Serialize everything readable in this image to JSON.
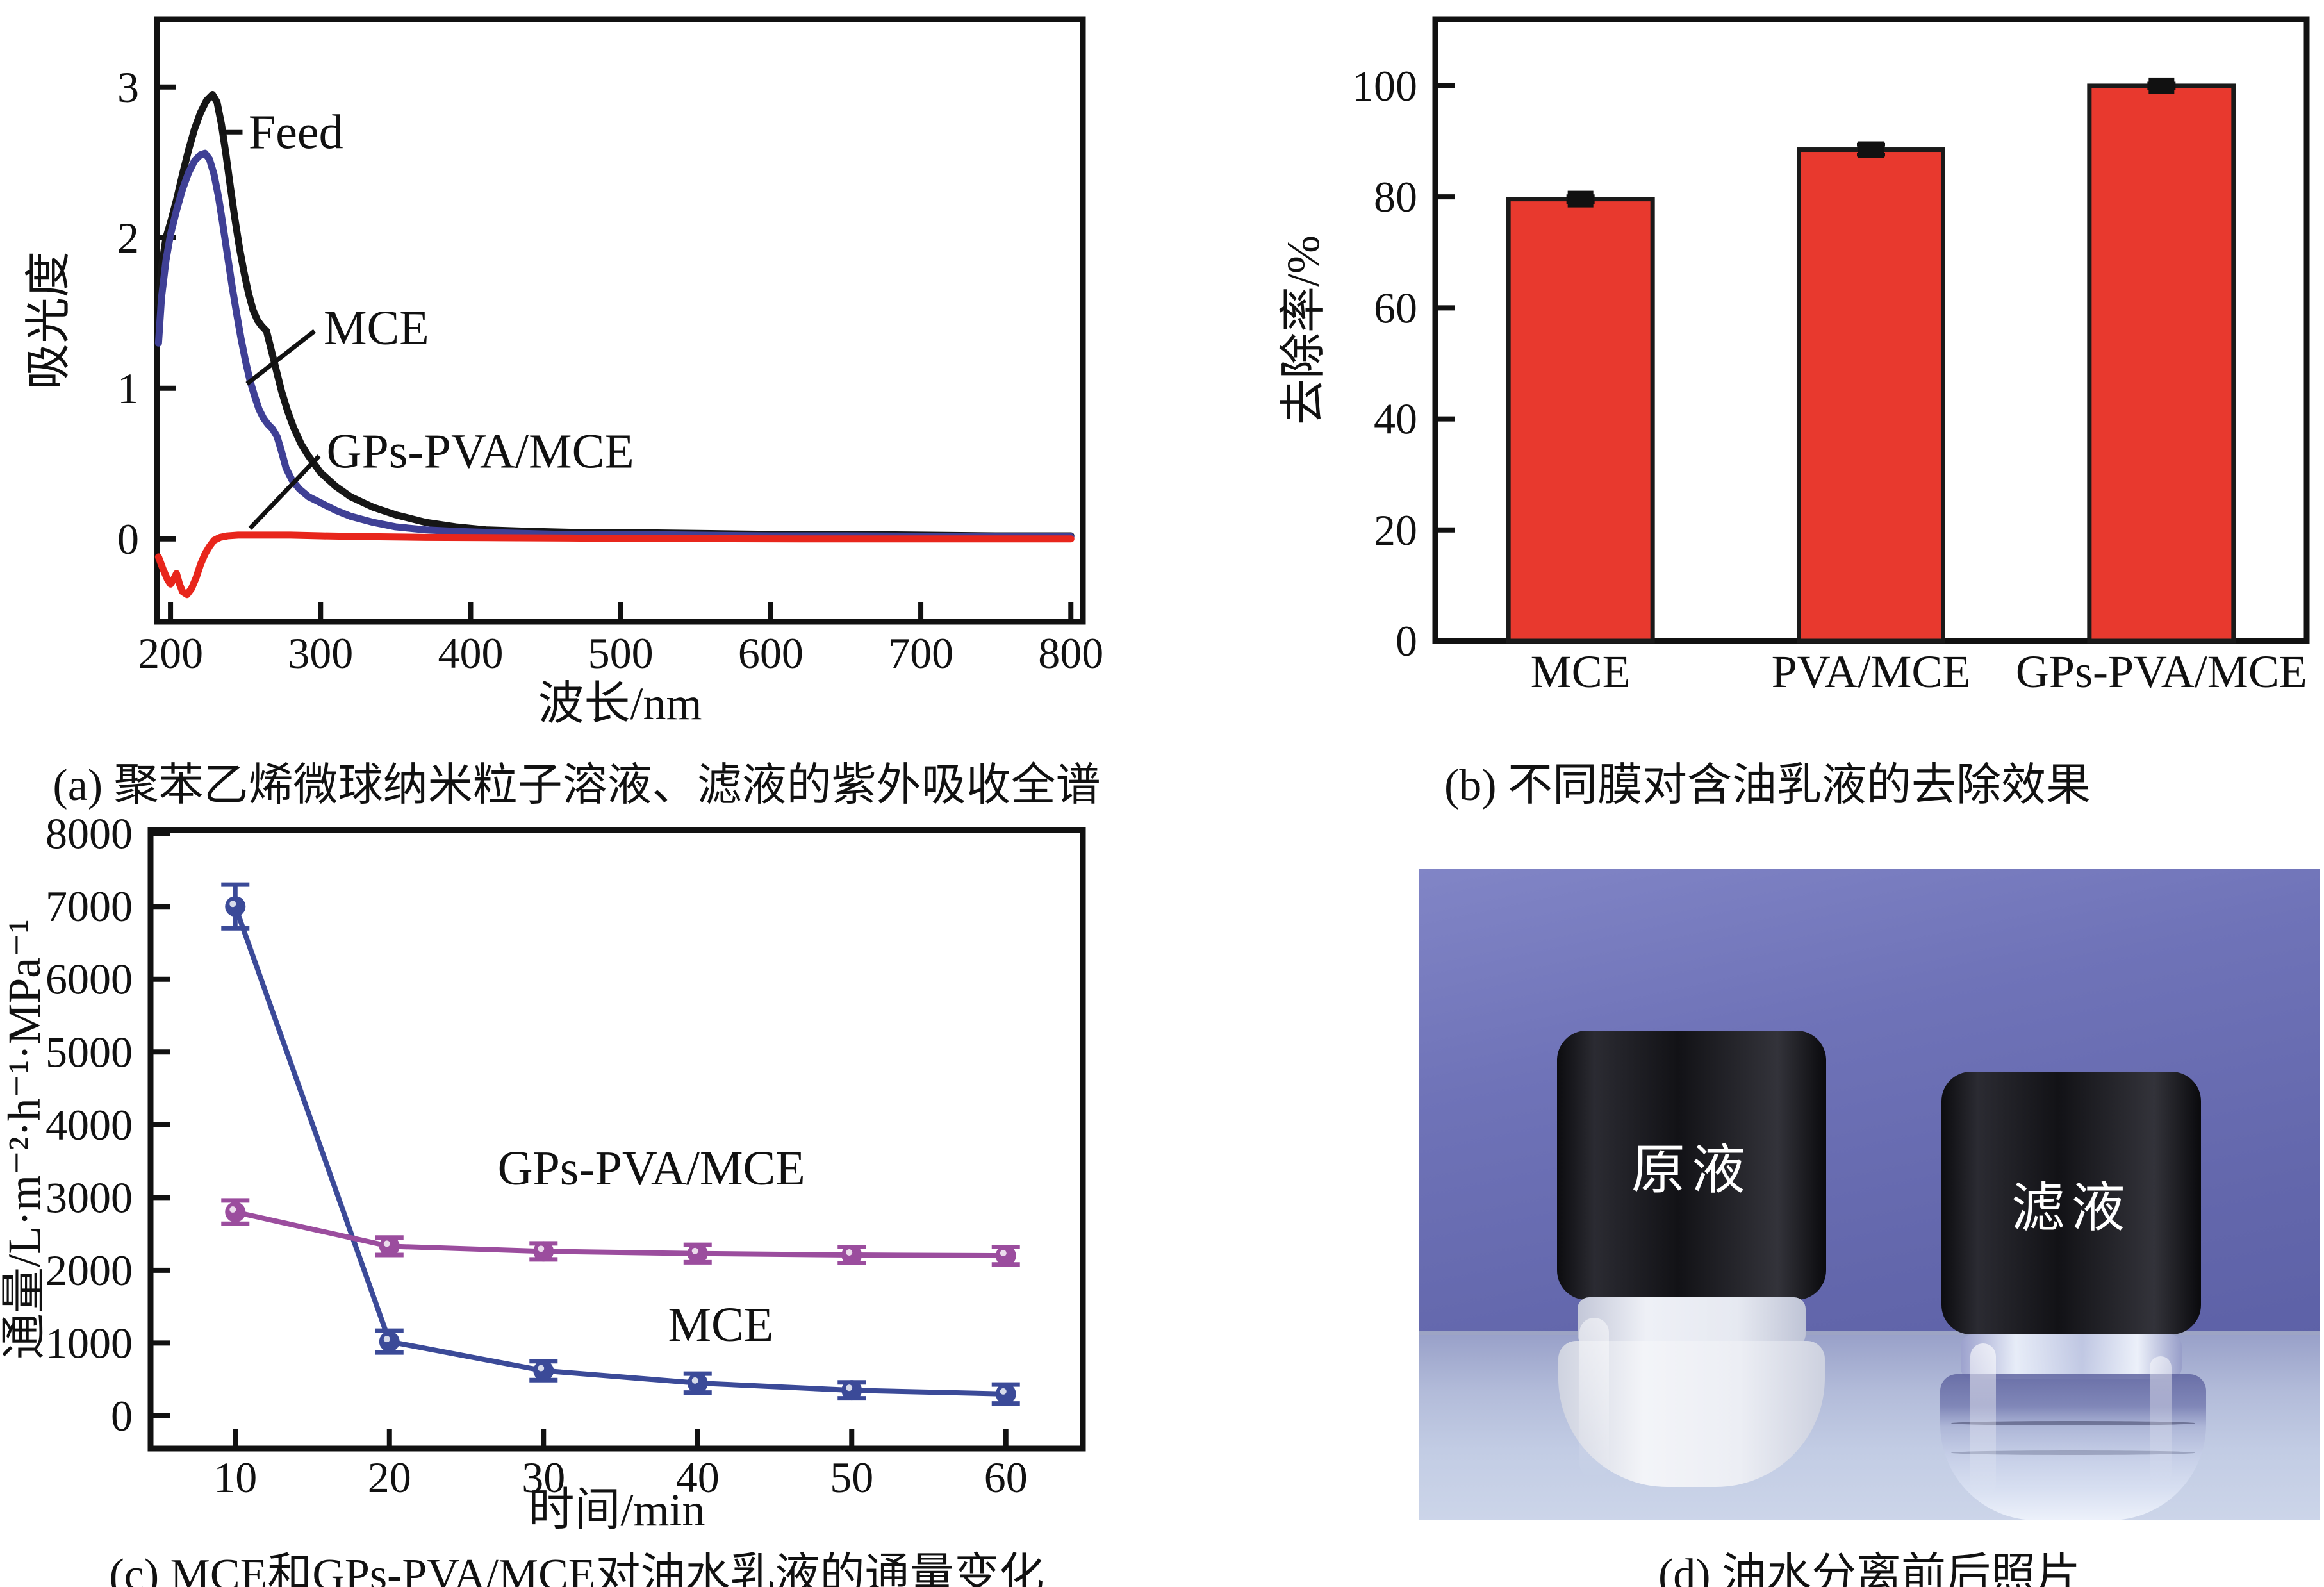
{
  "captions": {
    "a": "(a) 聚苯乙烯微球纳米粒子溶液、滤液的紫外吸收全谱",
    "b": "(b) 不同膜对含油乳液的去除效果",
    "c": "(c) MCE和GPs-PVA/MCE对油水乳液的通量变化",
    "d": "(d) 油水分离前后照片"
  },
  "photo": {
    "left_vial_label": "原液",
    "right_vial_label": "滤液",
    "wall_color": "#6a6fb4",
    "table_color": "#c2cce4",
    "cap_color": "#141418"
  },
  "chart_data": [
    {
      "id": "a",
      "type": "line",
      "title": "",
      "xlabel": "波长/nm",
      "ylabel": "吸光度",
      "xlim": [
        191,
        808
      ],
      "ylim": [
        -0.55,
        3.45
      ],
      "xticks": [
        200,
        300,
        400,
        500,
        600,
        700,
        800
      ],
      "yticks": [
        0,
        1,
        2,
        3
      ],
      "series": [
        {
          "name": "Feed",
          "color": "#161616",
          "points": [
            [
              192,
              1.55
            ],
            [
              194,
              1.8
            ],
            [
              197,
              2.0
            ],
            [
              200,
              2.1
            ],
            [
              204,
              2.25
            ],
            [
              208,
              2.42
            ],
            [
              212,
              2.58
            ],
            [
              216,
              2.72
            ],
            [
              220,
              2.83
            ],
            [
              224,
              2.91
            ],
            [
              228,
              2.95
            ],
            [
              231,
              2.9
            ],
            [
              234,
              2.75
            ],
            [
              237,
              2.55
            ],
            [
              240,
              2.33
            ],
            [
              243,
              2.12
            ],
            [
              246,
              1.93
            ],
            [
              249,
              1.77
            ],
            [
              252,
              1.63
            ],
            [
              255,
              1.52
            ],
            [
              258,
              1.45
            ],
            [
              261,
              1.41
            ],
            [
              264,
              1.38
            ],
            [
              266,
              1.3
            ],
            [
              268,
              1.22
            ],
            [
              271,
              1.1
            ],
            [
              274,
              0.98
            ],
            [
              278,
              0.85
            ],
            [
              282,
              0.74
            ],
            [
              287,
              0.63
            ],
            [
              292,
              0.55
            ],
            [
              300,
              0.44
            ],
            [
              310,
              0.35
            ],
            [
              320,
              0.28
            ],
            [
              335,
              0.21
            ],
            [
              350,
              0.16
            ],
            [
              370,
              0.11
            ],
            [
              390,
              0.08
            ],
            [
              410,
              0.06
            ],
            [
              440,
              0.05
            ],
            [
              480,
              0.04
            ],
            [
              520,
              0.04
            ],
            [
              560,
              0.035
            ],
            [
              600,
              0.03
            ],
            [
              650,
              0.03
            ],
            [
              700,
              0.025
            ],
            [
              750,
              0.02
            ],
            [
              800,
              0.02
            ]
          ]
        },
        {
          "name": "MCE",
          "color": "#3f4095",
          "points": [
            [
              192,
              1.3
            ],
            [
              194,
              1.6
            ],
            [
              197,
              1.85
            ],
            [
              200,
              2.02
            ],
            [
              204,
              2.18
            ],
            [
              208,
              2.32
            ],
            [
              212,
              2.43
            ],
            [
              216,
              2.51
            ],
            [
              220,
              2.55
            ],
            [
              223,
              2.56
            ],
            [
              226,
              2.52
            ],
            [
              229,
              2.42
            ],
            [
              232,
              2.27
            ],
            [
              235,
              2.08
            ],
            [
              238,
              1.88
            ],
            [
              241,
              1.68
            ],
            [
              244,
              1.5
            ],
            [
              247,
              1.33
            ],
            [
              250,
              1.18
            ],
            [
              253,
              1.05
            ],
            [
              256,
              0.95
            ],
            [
              259,
              0.86
            ],
            [
              262,
              0.8
            ],
            [
              265,
              0.76
            ],
            [
              268,
              0.73
            ],
            [
              271,
              0.68
            ],
            [
              274,
              0.58
            ],
            [
              277,
              0.47
            ],
            [
              281,
              0.39
            ],
            [
              286,
              0.33
            ],
            [
              292,
              0.28
            ],
            [
              300,
              0.24
            ],
            [
              310,
              0.19
            ],
            [
              320,
              0.15
            ],
            [
              335,
              0.11
            ],
            [
              350,
              0.08
            ],
            [
              370,
              0.06
            ],
            [
              390,
              0.05
            ],
            [
              420,
              0.04
            ],
            [
              460,
              0.03
            ],
            [
              500,
              0.03
            ],
            [
              550,
              0.025
            ],
            [
              600,
              0.02
            ],
            [
              650,
              0.02
            ],
            [
              700,
              0.018
            ],
            [
              750,
              0.015
            ],
            [
              800,
              0.015
            ]
          ]
        },
        {
          "name": "GPs-PVA/MCE",
          "color": "#e8261c",
          "points": [
            [
              192,
              -0.12
            ],
            [
              195,
              -0.2
            ],
            [
              198,
              -0.27
            ],
            [
              200,
              -0.3
            ],
            [
              202,
              -0.27
            ],
            [
              204,
              -0.23
            ],
            [
              206,
              -0.3
            ],
            [
              208,
              -0.35
            ],
            [
              211,
              -0.37
            ],
            [
              214,
              -0.33
            ],
            [
              217,
              -0.26
            ],
            [
              220,
              -0.17
            ],
            [
              223,
              -0.1
            ],
            [
              226,
              -0.05
            ],
            [
              229,
              -0.01
            ],
            [
              233,
              0.01
            ],
            [
              238,
              0.02
            ],
            [
              245,
              0.025
            ],
            [
              260,
              0.025
            ],
            [
              280,
              0.025
            ],
            [
              300,
              0.02
            ],
            [
              330,
              0.015
            ],
            [
              370,
              0.01
            ],
            [
              420,
              0.008
            ],
            [
              480,
              0.005
            ],
            [
              550,
              0.002
            ],
            [
              620,
              0.0
            ],
            [
              700,
              0.0
            ],
            [
              800,
              0.0
            ]
          ]
        }
      ],
      "annotations": [
        {
          "text": "Feed",
          "tx": 252,
          "ty": 2.7,
          "anchor": "start",
          "line": [
            233,
            2.7,
            248,
            2.7
          ]
        },
        {
          "text": "MCE",
          "tx": 302,
          "ty": 1.4,
          "anchor": "start",
          "line": [
            251,
            1.03,
            296,
            1.38
          ]
        },
        {
          "text": "GPs-PVA/MCE",
          "tx": 304,
          "ty": 0.58,
          "anchor": "start",
          "line": [
            253,
            0.07,
            299,
            0.55
          ]
        }
      ]
    },
    {
      "id": "b",
      "type": "bar",
      "categories": [
        "MCE",
        "PVA/MCE",
        "GPs-PVA/MCE"
      ],
      "values": [
        79.6,
        88.5,
        100.0
      ],
      "errors": [
        0.5,
        0.9,
        0.4
      ],
      "bar_color": "#e8392e",
      "edge_color": "#1a1a1a",
      "ylabel": "去除率/%",
      "ylim": [
        0,
        112
      ],
      "yticks": [
        0,
        20,
        40,
        60,
        80,
        100
      ]
    },
    {
      "id": "c",
      "type": "line-scatter",
      "xlabel": "时间/min",
      "ylabel": "通量/L·m⁻²·h⁻¹·MPa⁻¹",
      "xlim": [
        4.5,
        65
      ],
      "ylim": [
        -450,
        8050
      ],
      "xticks": [
        10,
        20,
        30,
        40,
        50,
        60
      ],
      "yticks": [
        0,
        1000,
        2000,
        3000,
        4000,
        5000,
        6000,
        7000,
        8000
      ],
      "series": [
        {
          "name": "MCE",
          "color": "#3b4a98",
          "x": [
            10,
            20,
            30,
            40,
            50,
            60
          ],
          "y": [
            7000,
            1020,
            620,
            450,
            350,
            300
          ],
          "err": [
            300,
            150,
            130,
            130,
            110,
            130
          ]
        },
        {
          "name": "GPs-PVA/MCE",
          "color": "#9b4d9e",
          "x": [
            10,
            20,
            30,
            40,
            50,
            60
          ],
          "y": [
            2800,
            2330,
            2260,
            2230,
            2210,
            2200
          ],
          "err": [
            160,
            120,
            110,
            120,
            110,
            120
          ]
        }
      ],
      "annotations": [
        {
          "text": "GPs-PVA/MCE",
          "tx": 37,
          "ty": 3400,
          "anchor": "middle"
        },
        {
          "text": "MCE",
          "tx": 41.5,
          "ty": 1250,
          "anchor": "middle"
        }
      ]
    }
  ]
}
